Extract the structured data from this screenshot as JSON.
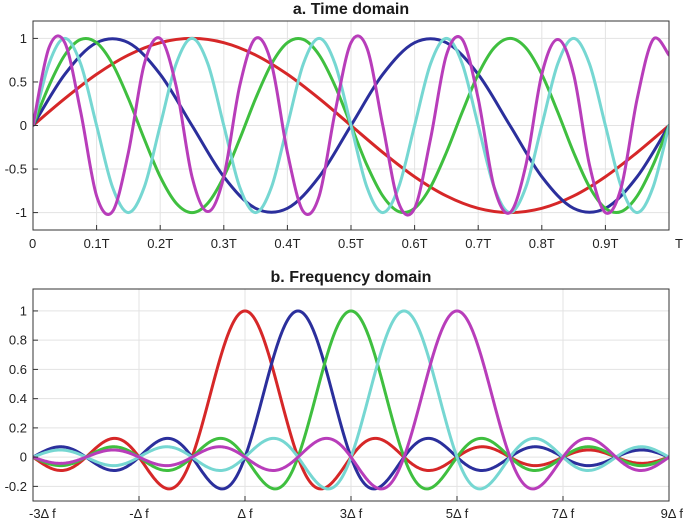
{
  "chart_data": [
    {
      "type": "line",
      "title": "a. Time domain",
      "xlabel": "",
      "ylabel": "",
      "xlim": [
        0,
        1
      ],
      "ylim": [
        -1.2,
        1.2
      ],
      "grid": true,
      "x_ticks": [
        {
          "value": 0,
          "label": "0"
        },
        {
          "value": 0.1,
          "label": "0.1T"
        },
        {
          "value": 0.2,
          "label": "0.2T"
        },
        {
          "value": 0.3,
          "label": "0.3T"
        },
        {
          "value": 0.4,
          "label": "0.4T"
        },
        {
          "value": 0.5,
          "label": "0.5T"
        },
        {
          "value": 0.6,
          "label": "0.6T"
        },
        {
          "value": 0.7,
          "label": "0.7T"
        },
        {
          "value": 0.8,
          "label": "0.8T"
        },
        {
          "value": 0.9,
          "label": "0.9T"
        },
        {
          "value": 1,
          "label": "T"
        }
      ],
      "y_ticks": [
        {
          "value": 1,
          "label": "1"
        },
        {
          "value": 0.5,
          "label": "0.5"
        },
        {
          "value": 0,
          "label": "0"
        },
        {
          "value": -0.5,
          "label": "-0.5"
        },
        {
          "value": -1,
          "label": "-1"
        }
      ],
      "series": [
        {
          "color": "#d62728",
          "x": [
            0,
            0.05,
            0.1,
            0.15,
            0.2,
            0.25,
            0.3,
            0.35,
            0.4,
            0.45,
            0.5,
            0.55,
            0.6,
            0.65,
            0.7,
            0.75,
            0.8,
            0.85,
            0.9,
            0.95,
            1
          ],
          "y": [
            0,
            0.309,
            0.588,
            0.809,
            0.951,
            1,
            0.951,
            0.809,
            0.588,
            0.309,
            0,
            -0.309,
            -0.588,
            -0.809,
            -0.951,
            -1,
            -0.951,
            -0.809,
            -0.588,
            -0.309,
            0
          ]
        },
        {
          "color": "#2b2f9c",
          "x": [
            0,
            0.05,
            0.1,
            0.15,
            0.2,
            0.25,
            0.3,
            0.35,
            0.4,
            0.45,
            0.5,
            0.55,
            0.6,
            0.65,
            0.7,
            0.75,
            0.8,
            0.85,
            0.9,
            0.95,
            1
          ],
          "y": [
            0,
            0.588,
            0.951,
            0.951,
            0.588,
            0,
            -0.588,
            -0.951,
            -0.951,
            -0.588,
            0,
            0.588,
            0.951,
            0.951,
            0.588,
            0,
            -0.588,
            -0.951,
            -0.951,
            -0.588,
            0
          ]
        },
        {
          "color": "#3fbf3f",
          "x": [
            0,
            0.025,
            0.05,
            0.075,
            0.1,
            0.125,
            0.15,
            0.175,
            0.2,
            0.225,
            0.25,
            0.275,
            0.3,
            0.325,
            0.35,
            0.375,
            0.4,
            0.425,
            0.45,
            0.475,
            0.5,
            0.525,
            0.55,
            0.575,
            0.6,
            0.625,
            0.65,
            0.675,
            0.7,
            0.725,
            0.75,
            0.775,
            0.8,
            0.825,
            0.85,
            0.875,
            0.9,
            0.925,
            0.95,
            0.975,
            1
          ],
          "y": [
            0,
            0.454,
            0.809,
            0.988,
            0.951,
            0.707,
            0.309,
            -0.156,
            -0.588,
            -0.891,
            -1,
            -0.891,
            -0.588,
            -0.156,
            0.309,
            0.707,
            0.951,
            0.988,
            0.809,
            0.454,
            0,
            -0.454,
            -0.809,
            -0.988,
            -0.951,
            -0.707,
            -0.309,
            0.156,
            0.588,
            0.891,
            1,
            0.891,
            0.588,
            0.156,
            -0.309,
            -0.707,
            -0.951,
            -0.988,
            -0.809,
            -0.454,
            0
          ]
        },
        {
          "color": "#76d7d2",
          "x": [
            0,
            0.025,
            0.05,
            0.075,
            0.1,
            0.125,
            0.15,
            0.175,
            0.2,
            0.225,
            0.25,
            0.275,
            0.3,
            0.325,
            0.35,
            0.375,
            0.4,
            0.425,
            0.45,
            0.475,
            0.5,
            0.525,
            0.55,
            0.575,
            0.6,
            0.625,
            0.65,
            0.675,
            0.7,
            0.725,
            0.75,
            0.775,
            0.8,
            0.825,
            0.85,
            0.875,
            0.9,
            0.925,
            0.95,
            0.975,
            1
          ],
          "y": [
            0,
            0.707,
            1,
            0.707,
            0,
            -0.707,
            -1,
            -0.707,
            0,
            0.707,
            1,
            0.707,
            0,
            -0.707,
            -1,
            -0.707,
            0,
            0.707,
            1,
            0.707,
            0,
            -0.707,
            -1,
            -0.707,
            0,
            0.707,
            1,
            0.707,
            0,
            -0.707,
            -1,
            -0.707,
            0,
            0.707,
            1,
            0.707,
            0,
            -0.707,
            -1,
            -0.707,
            0
          ]
        },
        {
          "color": "#b83dba",
          "x": [
            0,
            0.025,
            0.05,
            0.075,
            0.1,
            0.125,
            0.15,
            0.175,
            0.2,
            0.225,
            0.25,
            0.275,
            0.3,
            0.325,
            0.35,
            0.375,
            0.4,
            0.425,
            0.45,
            0.475,
            0.5,
            0.525,
            0.55,
            0.575,
            0.6,
            0.625,
            0.65,
            0.675,
            0.7,
            0.725,
            0.75,
            0.775,
            0.8,
            0.825,
            0.85,
            0.875,
            0.9,
            0.925,
            0.95,
            0.975,
            1
          ],
          "y": [
            0,
            0.891,
            0.951,
            0.156,
            -0.809,
            -0.988,
            -0.309,
            0.707,
            1,
            0.454,
            -0.588,
            -0.988,
            -0.588,
            0.454,
            1,
            0.707,
            -0.309,
            -0.988,
            -0.809,
            0.156,
            0.951,
            0.891,
            0,
            -0.891,
            -0.951,
            -0.156,
            0.809,
            0.988,
            0.309,
            -0.707,
            -1,
            -0.454,
            0.588,
            0.988,
            0.588,
            -0.454,
            -1,
            -0.707,
            0.309,
            0.988,
            0.809
          ]
        }
      ]
    },
    {
      "type": "line",
      "title": "b. Frequency domain",
      "xlabel": "",
      "ylabel": "",
      "xlim": [
        -3,
        9
      ],
      "ylim": [
        -0.3,
        1.15
      ],
      "grid": true,
      "x_ticks": [
        {
          "value": -3,
          "label": "-3Δ f"
        },
        {
          "value": -1,
          "label": "-Δ f"
        },
        {
          "value": 1,
          "label": "Δ f"
        },
        {
          "value": 3,
          "label": "3Δ f"
        },
        {
          "value": 5,
          "label": "5Δ f"
        },
        {
          "value": 7,
          "label": "7Δ f"
        },
        {
          "value": 9,
          "label": "9Δ f"
        }
      ],
      "y_ticks": [
        {
          "value": 1,
          "label": "1"
        },
        {
          "value": 0.8,
          "label": "0.8"
        },
        {
          "value": 0.6,
          "label": "0.6"
        },
        {
          "value": 0.4,
          "label": "0.4"
        },
        {
          "value": 0.2,
          "label": "0.2"
        },
        {
          "value": 0,
          "label": "0"
        },
        {
          "value": -0.2,
          "label": "-0.2"
        }
      ],
      "series": [
        {
          "color": "#d62728",
          "center": 1,
          "x": [
            -3,
            -2.5,
            -2,
            -1.5,
            -1,
            -0.5,
            0,
            0.5,
            1,
            1.5,
            2,
            2.5,
            3,
            3.5,
            4,
            4.5,
            5,
            5.5,
            6,
            6.5,
            7,
            7.5,
            8,
            8.5,
            9
          ],
          "y": [
            0,
            -0.09,
            0,
            0.13,
            0,
            -0.21,
            0,
            0.64,
            1,
            0.64,
            0,
            -0.21,
            0,
            0.13,
            0,
            -0.09,
            0,
            0.07,
            0,
            -0.06,
            0,
            0.05,
            0,
            -0.04,
            0
          ]
        },
        {
          "color": "#2b2f9c",
          "center": 2,
          "x": [
            -3,
            -2.5,
            -2,
            -1.5,
            -1,
            -0.5,
            0,
            0.5,
            1,
            1.5,
            2,
            2.5,
            3,
            3.5,
            4,
            4.5,
            5,
            5.5,
            6,
            6.5,
            7,
            7.5,
            8,
            8.5,
            9
          ],
          "y": [
            0,
            0.07,
            0,
            -0.09,
            0,
            0.13,
            0,
            -0.21,
            0,
            0.64,
            1,
            0.64,
            0,
            -0.21,
            0,
            0.13,
            0,
            -0.09,
            0,
            0.07,
            0,
            -0.06,
            0,
            0.05,
            0
          ]
        },
        {
          "color": "#3fbf3f",
          "center": 3,
          "x": [
            -3,
            -2.5,
            -2,
            -1.5,
            -1,
            -0.5,
            0,
            0.5,
            1,
            1.5,
            2,
            2.5,
            3,
            3.5,
            4,
            4.5,
            5,
            5.5,
            6,
            6.5,
            7,
            7.5,
            8,
            8.5,
            9
          ],
          "y": [
            0,
            -0.06,
            0,
            0.07,
            0,
            -0.09,
            0,
            0.13,
            0,
            -0.21,
            0,
            0.64,
            1,
            0.64,
            0,
            -0.21,
            0,
            0.13,
            0,
            -0.09,
            0,
            0.07,
            0,
            -0.06,
            0
          ]
        },
        {
          "color": "#76d7d2",
          "center": 4,
          "x": [
            -3,
            -2.5,
            -2,
            -1.5,
            -1,
            -0.5,
            0,
            0.5,
            1,
            1.5,
            2,
            2.5,
            3,
            3.5,
            4,
            4.5,
            5,
            5.5,
            6,
            6.5,
            7,
            7.5,
            8,
            8.5,
            9
          ],
          "y": [
            0,
            0.05,
            0,
            -0.06,
            0,
            0.07,
            0,
            -0.09,
            0,
            0.13,
            0,
            -0.21,
            0,
            0.64,
            1,
            0.64,
            0,
            -0.21,
            0,
            0.13,
            0,
            -0.09,
            0,
            0.07,
            0
          ]
        },
        {
          "color": "#b83dba",
          "center": 5,
          "x": [
            -3,
            -2.5,
            -2,
            -1.5,
            -1,
            -0.5,
            0,
            0.5,
            1,
            1.5,
            2,
            2.5,
            3,
            3.5,
            4,
            4.5,
            5,
            5.5,
            6,
            6.5,
            7,
            7.5,
            8,
            8.5,
            9
          ],
          "y": [
            0,
            -0.04,
            0,
            0.05,
            0,
            -0.06,
            0,
            0.07,
            0,
            -0.09,
            0,
            0.13,
            0,
            -0.21,
            0,
            0.64,
            1,
            0.64,
            0,
            -0.21,
            0,
            0.13,
            0,
            -0.09,
            0
          ]
        }
      ]
    }
  ]
}
